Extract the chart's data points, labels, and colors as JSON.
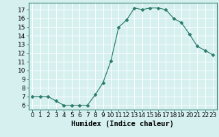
{
  "x": [
    0,
    1,
    2,
    3,
    4,
    5,
    6,
    7,
    8,
    9,
    10,
    11,
    12,
    13,
    14,
    15,
    16,
    17,
    18,
    19,
    20,
    21,
    22,
    23
  ],
  "y": [
    7.0,
    7.0,
    7.0,
    6.5,
    6.0,
    6.0,
    6.0,
    6.0,
    7.2,
    8.6,
    11.1,
    15.0,
    15.8,
    17.2,
    17.0,
    17.2,
    17.2,
    17.0,
    16.0,
    15.5,
    14.2,
    12.8,
    12.3,
    11.8
  ],
  "line_color": "#2e7d6e",
  "marker": "D",
  "marker_size": 2.5,
  "bg_color": "#d6f0f0",
  "grid_color": "#ffffff",
  "xlabel": "Humidex (Indice chaleur)",
  "xlabel_fontsize": 7.5,
  "xlim": [
    -0.5,
    23.5
  ],
  "ylim": [
    5.5,
    17.8
  ],
  "xticks": [
    0,
    1,
    2,
    3,
    4,
    5,
    6,
    7,
    8,
    9,
    10,
    11,
    12,
    13,
    14,
    15,
    16,
    17,
    18,
    19,
    20,
    21,
    22,
    23
  ],
  "yticks": [
    6,
    7,
    8,
    9,
    10,
    11,
    12,
    13,
    14,
    15,
    16,
    17
  ],
  "tick_fontsize": 6.5,
  "spine_color": "#2e7d6e"
}
